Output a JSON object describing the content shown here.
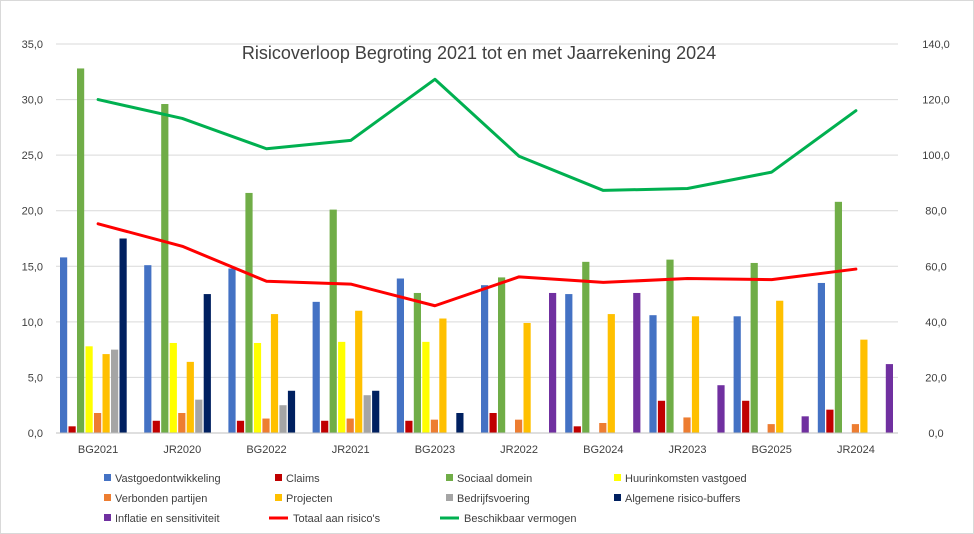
{
  "chart_data": {
    "type": "bar",
    "title": "Risicoverloop Begroting 2021 tot en met Jaarrekening 2024",
    "categories": [
      "BG2021",
      "JR2020",
      "BG2022",
      "JR2021",
      "BG2023",
      "JR2022",
      "BG2024",
      "JR2023",
      "BG2025",
      "JR2024"
    ],
    "y_left": {
      "min": 0,
      "max": 35,
      "step": 5,
      "tick_labels": [
        "0,0",
        "5,0",
        "10,0",
        "15,0",
        "20,0",
        "25,0",
        "30,0",
        "35,0"
      ]
    },
    "y_right": {
      "min": 0,
      "max": 140,
      "step": 20,
      "tick_labels": [
        "0,0",
        "20,0",
        "40,0",
        "60,0",
        "80,0",
        "100,0",
        "120,0",
        "140,0"
      ]
    },
    "grid": true,
    "legend_position": "bottom",
    "bar_series": [
      {
        "name": "Vastgoedontwikkeling",
        "color": "#4472C4",
        "values": [
          15.8,
          15.1,
          14.8,
          11.8,
          13.9,
          13.3,
          12.5,
          10.6,
          10.5,
          13.5
        ]
      },
      {
        "name": "Claims",
        "color": "#C00000",
        "values": [
          0.6,
          1.1,
          1.1,
          1.1,
          1.1,
          1.8,
          0.6,
          2.9,
          2.9,
          2.1
        ]
      },
      {
        "name": "Sociaal domein",
        "color": "#70AD47",
        "values": [
          32.8,
          29.6,
          21.6,
          20.1,
          12.6,
          14.0,
          15.4,
          15.6,
          15.3,
          20.8
        ]
      },
      {
        "name": "Huurinkomsten vastgoed",
        "color": "#FFFF00",
        "values": [
          7.8,
          8.1,
          8.1,
          8.2,
          8.2,
          0,
          0,
          0,
          0,
          0
        ]
      },
      {
        "name": "Verbonden partijen",
        "color": "#ED7D31",
        "values": [
          1.8,
          1.8,
          1.3,
          1.3,
          1.2,
          1.2,
          0.9,
          1.4,
          0.8,
          0.8
        ]
      },
      {
        "name": "Projecten",
        "color": "#FFC000",
        "values": [
          7.1,
          6.4,
          10.7,
          11.0,
          10.3,
          9.9,
          10.7,
          10.5,
          11.9,
          8.4
        ]
      },
      {
        "name": "Bedrijfsvoering",
        "color": "#A5A5A5",
        "values": [
          7.5,
          3.0,
          2.5,
          3.4,
          0,
          0,
          0,
          0,
          0,
          0
        ]
      },
      {
        "name": "Algemene risico-buffers",
        "color": "#002060",
        "values": [
          17.5,
          12.5,
          3.8,
          3.8,
          1.8,
          0,
          0,
          0,
          0,
          0
        ]
      },
      {
        "name": "Inflatie en sensitiviteit",
        "color": "#7030A0",
        "values": [
          0,
          0,
          0,
          0,
          0,
          12.6,
          12.6,
          4.3,
          1.5,
          6.2
        ]
      }
    ],
    "line_series": [
      {
        "name": "Totaal aan risico's",
        "color": "#FF0000",
        "axis": "right",
        "values": [
          75.3,
          67.2,
          54.6,
          53.6,
          45.8,
          56.2,
          54.2,
          55.6,
          55.2,
          59.0
        ]
      },
      {
        "name": "Beschikbaar vermogen",
        "color": "#00B050",
        "axis": "right",
        "values": [
          120.0,
          113.2,
          102.3,
          105.3,
          127.3,
          99.6,
          87.3,
          88.0,
          93.9,
          116.0
        ]
      }
    ],
    "legend": [
      {
        "name": "Vastgoedontwikkeling",
        "kind": "box",
        "color": "#4472C4"
      },
      {
        "name": "Claims",
        "kind": "box",
        "color": "#C00000"
      },
      {
        "name": "Sociaal domein",
        "kind": "box",
        "color": "#70AD47"
      },
      {
        "name": "Huurinkomsten vastgoed",
        "kind": "box",
        "color": "#FFFF00"
      },
      {
        "name": "Verbonden partijen",
        "kind": "box",
        "color": "#ED7D31"
      },
      {
        "name": "Projecten",
        "kind": "box",
        "color": "#FFC000"
      },
      {
        "name": "Bedrijfsvoering",
        "kind": "box",
        "color": "#A5A5A5"
      },
      {
        "name": "Algemene risico-buffers",
        "kind": "box",
        "color": "#002060"
      },
      {
        "name": "Inflatie en sensitiviteit",
        "kind": "box",
        "color": "#7030A0"
      },
      {
        "name": "Totaal aan risico's",
        "kind": "line",
        "color": "#FF0000"
      },
      {
        "name": "Beschikbaar vermogen",
        "kind": "line",
        "color": "#00B050"
      }
    ]
  }
}
